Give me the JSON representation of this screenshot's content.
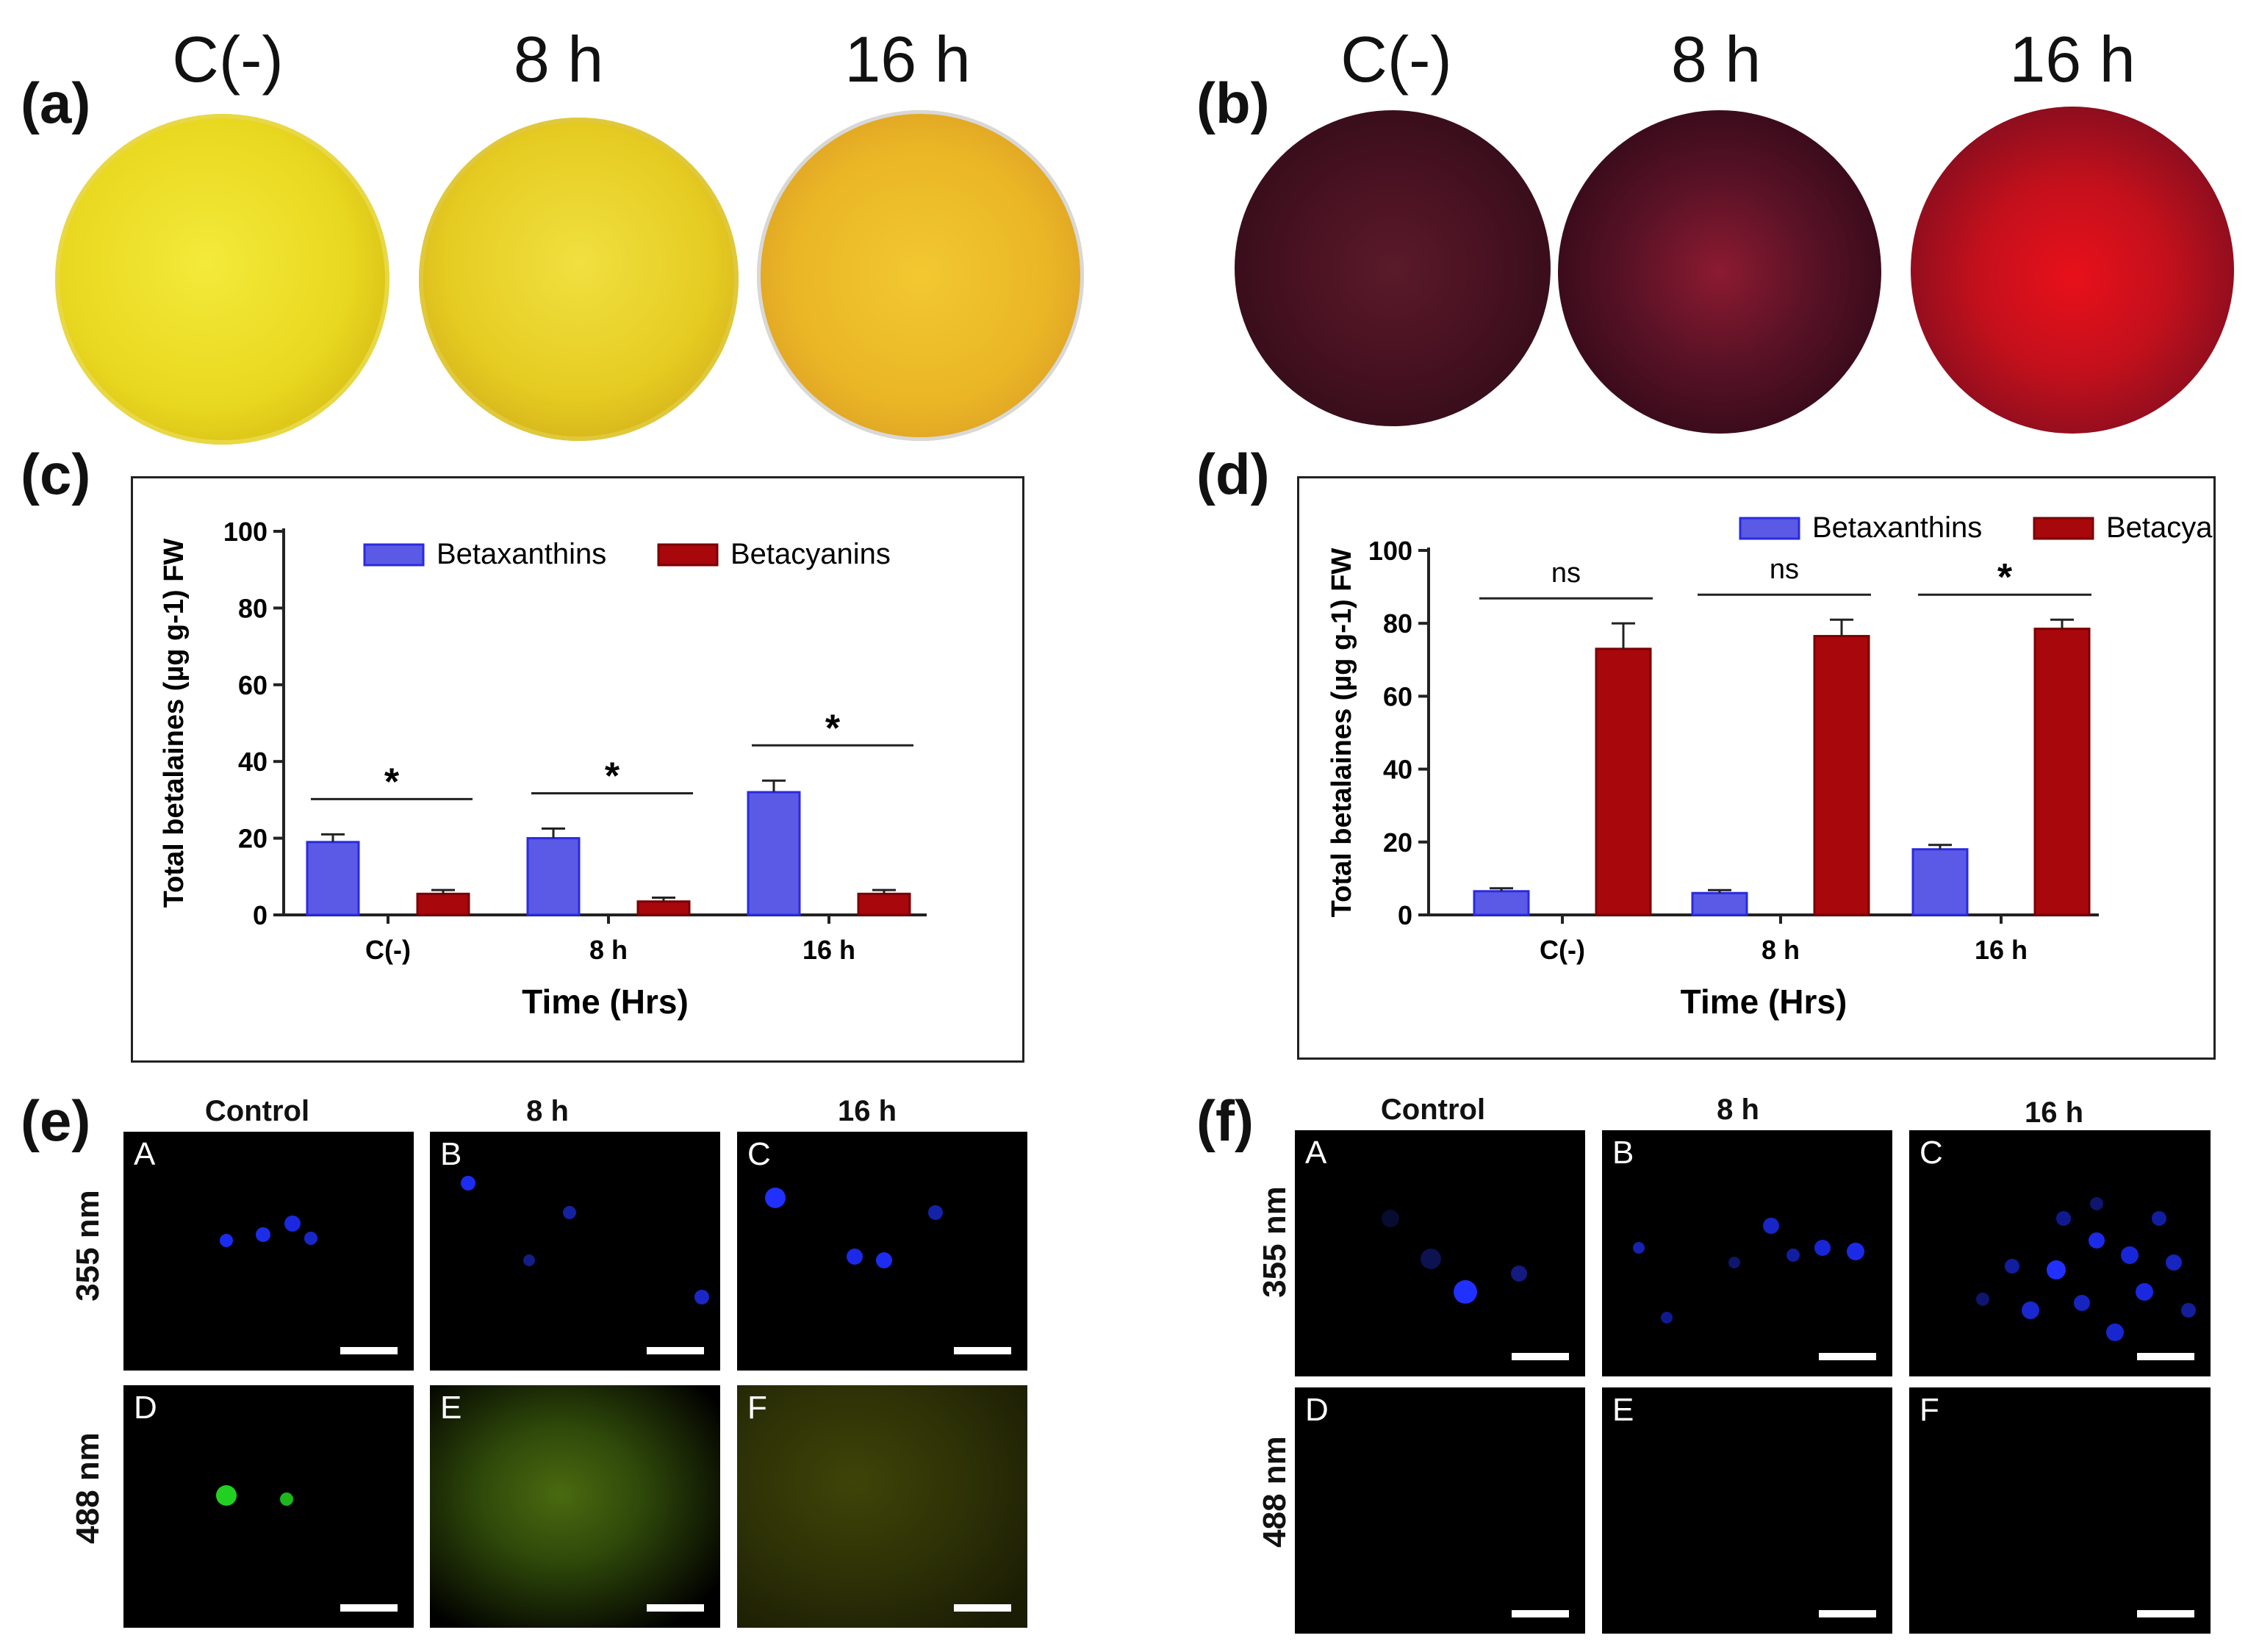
{
  "panels": {
    "a": {
      "letter": "(a)",
      "columns": [
        "C(-)",
        "8 h",
        "16 h"
      ]
    },
    "b": {
      "letter": "(b)",
      "columns": [
        "C(-)",
        "8 h",
        "16 h"
      ]
    },
    "c": {
      "letter": "(c)"
    },
    "d": {
      "letter": "(d)"
    },
    "e": {
      "letter": "(e)",
      "columns": [
        "Control",
        "8 h",
        "16 h"
      ],
      "rows": [
        "355 nm",
        "488 nm"
      ],
      "tiles": [
        "A",
        "B",
        "C",
        "D",
        "E",
        "F"
      ]
    },
    "f": {
      "letter": "(f)",
      "columns": [
        "Control",
        "8 h",
        "16 h"
      ],
      "rows": [
        "355 nm",
        "488 nm"
      ],
      "tiles": [
        "A",
        "B",
        "C",
        "D",
        "E",
        "F"
      ]
    }
  },
  "colors": {
    "betaxanthins": "#5a5ae6",
    "betacyanins": "#a8070c"
  },
  "chart_data": [
    {
      "id": "c",
      "type": "bar",
      "categories": [
        "C(-)",
        "8 h",
        "16 h"
      ],
      "series": [
        {
          "name": "Betaxanthins",
          "values": [
            19,
            20,
            32
          ],
          "errors": [
            2,
            2.5,
            3
          ]
        },
        {
          "name": "Betacyanins",
          "values": [
            5.5,
            3.5,
            5.5
          ],
          "errors": [
            1,
            1,
            1
          ]
        }
      ],
      "significance": [
        "*",
        "*",
        "*"
      ],
      "ylabel": "Total betalaines (µg g-1) FW",
      "xlabel": "Time (Hrs)",
      "ylim": [
        0,
        100
      ],
      "yticks": [
        "0",
        "20",
        "40",
        "60",
        "80",
        "100"
      ],
      "legend": [
        "Betaxanthins",
        "Betacyanins"
      ]
    },
    {
      "id": "d",
      "type": "bar",
      "categories": [
        "C(-)",
        "8 h",
        "16 h"
      ],
      "series": [
        {
          "name": "Betaxanthins",
          "values": [
            6.5,
            6,
            18
          ],
          "errors": [
            0.8,
            0.8,
            1.2
          ]
        },
        {
          "name": "Betacyanins",
          "values": [
            73,
            76.5,
            78.5
          ],
          "errors": [
            7,
            4.5,
            2.5
          ]
        }
      ],
      "significance": [
        "ns",
        "ns",
        "*"
      ],
      "ylabel": "Total betalaines (µg g-1) FW",
      "xlabel": "Time (Hrs)",
      "ylim": [
        0,
        100
      ],
      "yticks": [
        "0",
        "20",
        "40",
        "60",
        "80",
        "100"
      ],
      "legend": [
        "Betaxanthins",
        "Betacyanins"
      ]
    }
  ]
}
